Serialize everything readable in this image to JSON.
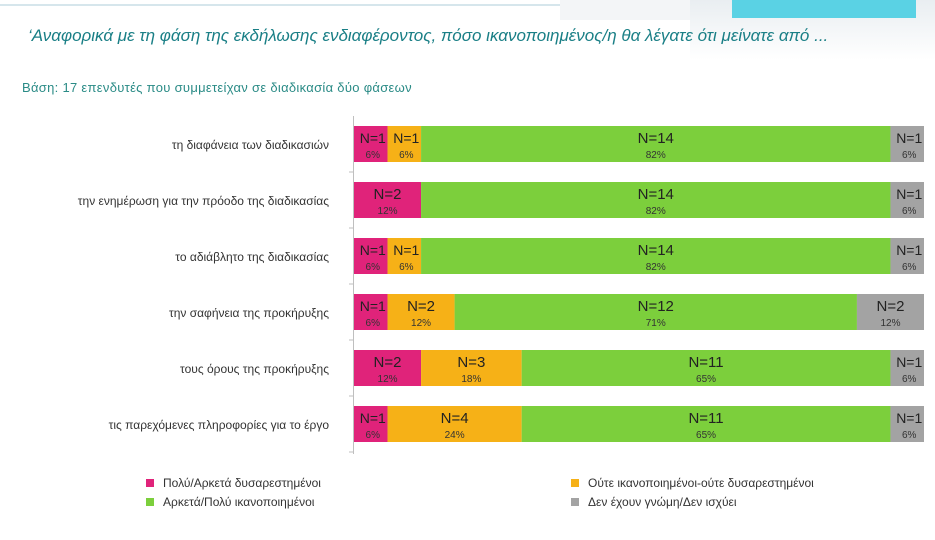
{
  "title": "‘Αναφορικά με τη φάση της εκδήλωσης ενδιαφέροντος, πόσο ικανοποιημένος/η θα λέγατε ότι μείνατε από ...",
  "base": "Βάση: 17 επενδυτές που συμμετείχαν  σε διαδικασία  δύο φάσεων",
  "chart_data": {
    "type": "bar",
    "orientation": "horizontal-stacked-100",
    "categories": [
      "τη διαφάνεια των διαδικασιών",
      "την ενημέρωση για την πρόοδο της διαδικασίας",
      "το αδιάβλητο της διαδικασίας",
      "την σαφήνεια της προκήρυξης",
      "τους όρους της προκήρυξης",
      "τις παρεχόμενες πληροφορίες για το έργο"
    ],
    "series": [
      {
        "name": "Πολύ/Αρκετά δυσαρεστημένοι",
        "color": "#e0237a",
        "counts": [
          1,
          2,
          1,
          1,
          2,
          1
        ],
        "percents": [
          6,
          12,
          6,
          6,
          12,
          6
        ],
        "count_labels": [
          "N=1",
          "N=2",
          "N=1",
          "N=1",
          "N=2",
          "N=1"
        ],
        "percent_labels": [
          "6%",
          "12%",
          "6%",
          "6%",
          "12%",
          "6%"
        ]
      },
      {
        "name": "Ούτε ικανοποιημένοι-ούτε δυσαρεστημένοι",
        "color": "#f6b117",
        "counts": [
          1,
          0,
          1,
          2,
          3,
          4
        ],
        "percents": [
          6,
          0,
          6,
          12,
          18,
          24
        ],
        "count_labels": [
          "N=1",
          "",
          "N=1",
          "N=2",
          "N=3",
          "N=4"
        ],
        "percent_labels": [
          "6%",
          "",
          "6%",
          "12%",
          "18%",
          "24%"
        ]
      },
      {
        "name": "Αρκετά/Πολύ ικανοποιημένοι",
        "color": "#7ccf3c",
        "counts": [
          14,
          14,
          14,
          12,
          11,
          11
        ],
        "percents": [
          82,
          82,
          82,
          71,
          65,
          65
        ],
        "count_labels": [
          "N=14",
          "N=14",
          "N=14",
          "N=12",
          "N=11",
          "N=11"
        ],
        "percent_labels": [
          "82%",
          "82%",
          "82%",
          "71%",
          "65%",
          "65%"
        ]
      },
      {
        "name": "Δεν έχουν γνώμη/Δεν ισχύει",
        "color": "#a3a3a3",
        "counts": [
          1,
          1,
          1,
          2,
          1,
          1
        ],
        "percents": [
          6,
          6,
          6,
          12,
          6,
          6
        ],
        "count_labels": [
          "N=1",
          "N=1",
          "N=1",
          "N=2",
          "N=1",
          "N=1"
        ],
        "percent_labels": [
          "6%",
          "6%",
          "6%",
          "12%",
          "6%",
          "6%"
        ]
      }
    ],
    "total": 17,
    "legend_position": "bottom"
  }
}
